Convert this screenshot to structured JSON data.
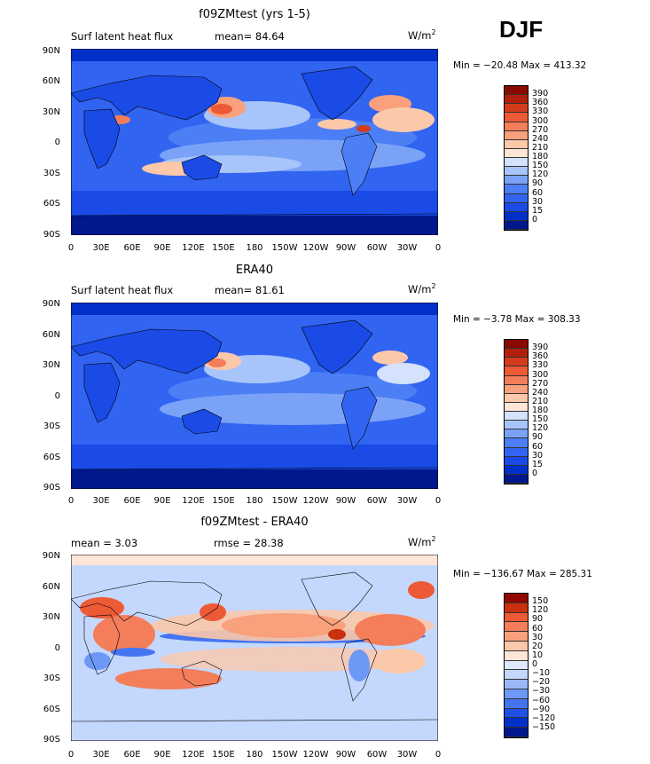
{
  "season": "DJF",
  "units_base": "W/m",
  "units_exp": "2",
  "x_tick_labels": [
    "0",
    "30E",
    "60E",
    "90E",
    "120E",
    "150E",
    "180",
    "150W",
    "120W",
    "90W",
    "60W",
    "30W",
    "0"
  ],
  "y_tick_labels": [
    "90N",
    "60N",
    "30N",
    "0",
    "30S",
    "60S",
    "90S"
  ],
  "colors": {
    "abs_scale": [
      "#00188c",
      "#0030c8",
      "#1a4be6",
      "#3164f0",
      "#4c7ef5",
      "#7aa3f8",
      "#a8c5fb",
      "#d4e2fd",
      "#fde6d6",
      "#fcc8aa",
      "#f9a07c",
      "#f47d5a",
      "#ec5a36",
      "#d43a1c",
      "#b0200c",
      "#880a00"
    ],
    "diff_scale": [
      "#00188c",
      "#0030c8",
      "#2050e8",
      "#4474f2",
      "#6e98f6",
      "#9ab8f9",
      "#c4d7fc",
      "#dfe9fd",
      "#fde6d6",
      "#fcc8aa",
      "#f9a07c",
      "#f47d5a",
      "#ec5a36",
      "#c8300e",
      "#900800"
    ]
  },
  "panels": [
    {
      "title": "f09ZMtest (yrs 1-5)",
      "left_label": "Surf latent heat flux",
      "stat_text": "mean=  84.64",
      "minmax": "Min = −20.48 Max = 413.32",
      "colorbar_labels": [
        "390",
        "360",
        "330",
        "300",
        "270",
        "240",
        "210",
        "180",
        "150",
        "120",
        "90",
        "60",
        "30",
        "15",
        "0"
      ],
      "colorbar_kind": "abs"
    },
    {
      "title": "ERA40",
      "left_label": "Surf latent heat flux",
      "stat_text": "mean=  81.61",
      "minmax": "Min =  −3.78 Max = 308.33",
      "colorbar_labels": [
        "390",
        "360",
        "330",
        "300",
        "270",
        "240",
        "210",
        "180",
        "150",
        "120",
        "90",
        "60",
        "30",
        "15",
        "0"
      ],
      "colorbar_kind": "abs"
    },
    {
      "title": "f09ZMtest - ERA40",
      "left_label": "mean =    3.03",
      "stat_text": "rmse =  28.38",
      "minmax": "Min = −136.67 Max = 285.31",
      "colorbar_labels": [
        "150",
        "120",
        "90",
        "60",
        "30",
        "20",
        "10",
        "0",
        "−10",
        "−20",
        "−30",
        "−60",
        "−90",
        "−120",
        "−150"
      ],
      "colorbar_kind": "diff"
    }
  ],
  "chart_data": [
    {
      "type": "heatmap",
      "title": "f09ZMtest (yrs 1-5)",
      "variable": "Surf latent heat flux",
      "units": "W/m2",
      "mean": 84.64,
      "min": -20.48,
      "max": 413.32,
      "x_range_deg": [
        0,
        360
      ],
      "y_range_deg": [
        -90,
        90
      ],
      "contour_levels": [
        0,
        15,
        30,
        60,
        90,
        120,
        150,
        180,
        210,
        240,
        270,
        300,
        330,
        360,
        390
      ]
    },
    {
      "type": "heatmap",
      "title": "ERA40",
      "variable": "Surf latent heat flux",
      "units": "W/m2",
      "mean": 81.61,
      "min": -3.78,
      "max": 308.33,
      "x_range_deg": [
        0,
        360
      ],
      "y_range_deg": [
        -90,
        90
      ],
      "contour_levels": [
        0,
        15,
        30,
        60,
        90,
        120,
        150,
        180,
        210,
        240,
        270,
        300,
        330,
        360,
        390
      ]
    },
    {
      "type": "heatmap",
      "title": "f09ZMtest - ERA40",
      "units": "W/m2",
      "mean": 3.03,
      "rmse": 28.38,
      "min": -136.67,
      "max": 285.31,
      "x_range_deg": [
        0,
        360
      ],
      "y_range_deg": [
        -90,
        90
      ],
      "contour_levels": [
        -150,
        -120,
        -90,
        -60,
        -30,
        -20,
        -10,
        0,
        10,
        20,
        30,
        60,
        90,
        120,
        150
      ]
    }
  ]
}
